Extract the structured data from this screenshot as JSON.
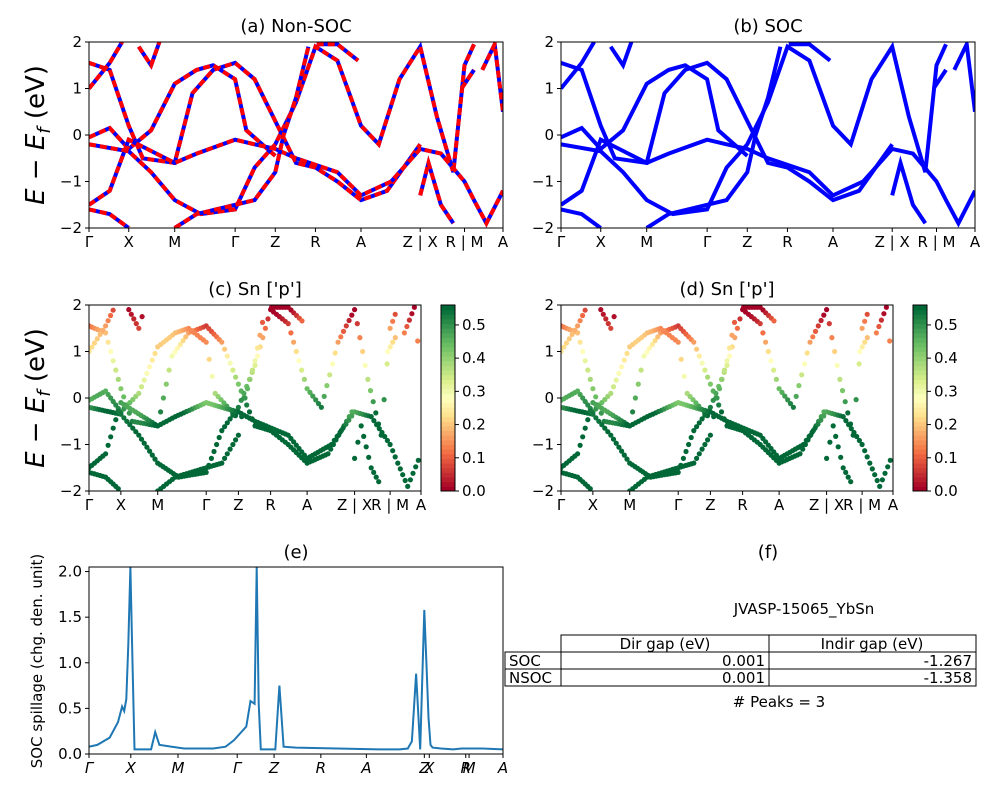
{
  "colors": {
    "band_blue": "#0000ff",
    "band_red": "#ff0000",
    "spillage_line": "#1f77b4"
  },
  "ylabel_band": "E − E",
  "ylabel_band_sub": "f",
  "ylabel_band_unit": " (eV)",
  "kpath_labels": [
    "Γ",
    "X",
    "M",
    "Γ",
    "Z",
    "R",
    "A",
    "Z | X",
    "R | M",
    "A"
  ],
  "kpath_labels_italic": [
    "Γ",
    "X",
    "M",
    "Γ",
    "Z",
    "R",
    "A",
    "Z",
    "X",
    "R",
    "M",
    "A"
  ],
  "colorbar": {
    "ticks": [
      "0.0",
      "0.1",
      "0.2",
      "0.3",
      "0.4",
      "0.5"
    ],
    "min": 0.0,
    "max": 0.56,
    "colormap": "RdYlGn"
  },
  "table": {
    "title": "JVASP-15065_YbSn",
    "headers": [
      "",
      "Dir gap (eV)",
      "Indir gap (eV)"
    ],
    "rows": [
      {
        "label": "SOC",
        "dir": "0.001",
        "indir": "-1.267"
      },
      {
        "label": "NSOC",
        "dir": "0.001",
        "indir": "-1.358"
      }
    ],
    "peaks": "# Peaks = 3"
  },
  "chart_data": [
    {
      "id": "a",
      "type": "line",
      "title": "(a) Non-SOC",
      "ylim": [
        -2,
        2
      ],
      "yticks": [
        "-2",
        "-1",
        "0",
        "1",
        "2"
      ],
      "xticks": [
        "Γ",
        "X",
        "M",
        "Γ",
        "Z",
        "R",
        "A",
        "Z | X",
        "R | M",
        "A"
      ],
      "series_style": [
        "red-blue-dashed"
      ]
    },
    {
      "id": "b",
      "type": "line",
      "title": "(b) SOC",
      "ylim": [
        -2,
        2
      ],
      "yticks": [
        "-2",
        "-1",
        "0",
        "1",
        "2"
      ],
      "xticks": [
        "Γ",
        "X",
        "M",
        "Γ",
        "Z",
        "R",
        "A",
        "Z | X",
        "R | M",
        "A"
      ],
      "series_style": [
        "blue"
      ]
    },
    {
      "id": "c",
      "type": "scatter",
      "title": "(c)  Sn ['p']",
      "ylim": [
        -2,
        2
      ],
      "yticks": [
        "-2",
        "-1",
        "0",
        "1",
        "2"
      ],
      "xticks": [
        "Γ",
        "X",
        "M",
        "Γ",
        "Z",
        "R",
        "A",
        "Z | X",
        "R | M",
        "A"
      ],
      "colorbar_range": [
        0.0,
        0.56
      ]
    },
    {
      "id": "d",
      "type": "scatter",
      "title": "(d) Sn ['p']",
      "ylim": [
        -2,
        2
      ],
      "yticks": [
        "-2",
        "-1",
        "0",
        "1",
        "2"
      ],
      "xticks": [
        "Γ",
        "X",
        "M",
        "Γ",
        "Z",
        "R",
        "A",
        "Z | X",
        "R | M",
        "A"
      ],
      "colorbar_range": [
        0.0,
        0.56
      ]
    },
    {
      "id": "e",
      "type": "line",
      "title": "(e)",
      "ylabel": "SOC spillage (chg. den. unit)",
      "ylim": [
        0,
        2.05
      ],
      "yticks": [
        "0.0",
        "0.5",
        "1.0",
        "1.5",
        "2.0"
      ],
      "xticks": [
        "Γ",
        "X",
        "M",
        "Γ",
        "Z",
        "R",
        "A",
        "Z",
        "X",
        "R",
        "M",
        "A"
      ],
      "x": [
        0,
        0.02,
        0.05,
        0.07,
        0.08,
        0.085,
        0.09,
        0.095,
        0.1,
        0.105,
        0.11,
        0.12,
        0.15,
        0.16,
        0.17,
        0.2,
        0.23,
        0.3,
        0.33,
        0.35,
        0.38,
        0.39,
        0.4,
        0.405,
        0.41,
        0.415,
        0.42,
        0.45,
        0.46,
        0.47,
        0.5,
        0.6,
        0.7,
        0.75,
        0.77,
        0.78,
        0.79,
        0.8,
        0.81,
        0.815,
        0.82,
        0.825,
        0.83,
        0.85,
        0.88,
        0.9,
        0.95,
        1.0
      ],
      "y": [
        0.08,
        0.1,
        0.18,
        0.35,
        0.52,
        0.47,
        0.6,
        1.2,
        2.05,
        1.0,
        0.05,
        0.05,
        0.05,
        0.24,
        0.1,
        0.08,
        0.06,
        0.06,
        0.08,
        0.15,
        0.3,
        0.58,
        0.55,
        2.05,
        0.55,
        0.05,
        0.05,
        0.05,
        0.75,
        0.08,
        0.07,
        0.06,
        0.05,
        0.05,
        0.06,
        0.14,
        0.88,
        0.05,
        1.58,
        1.0,
        0.4,
        0.1,
        0.07,
        0.06,
        0.05,
        0.06,
        0.06,
        0.05
      ]
    }
  ]
}
